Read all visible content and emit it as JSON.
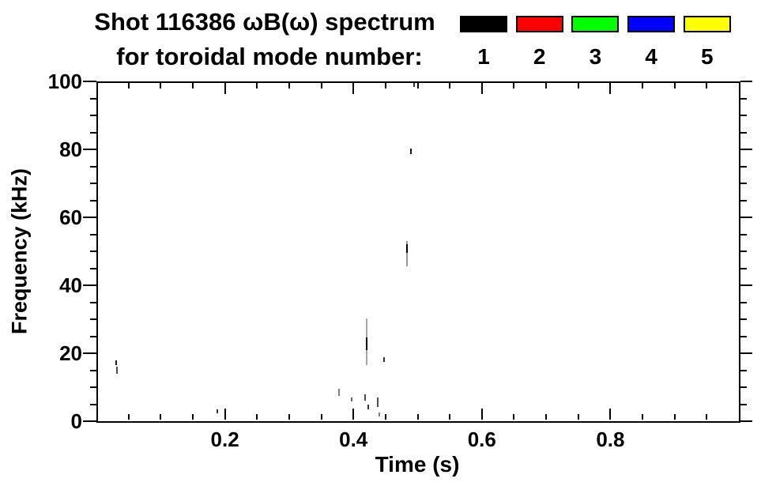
{
  "title": {
    "line1": "Shot 116386 ωB(ω) spectrum",
    "line2": "for toroidal mode number:"
  },
  "legend": {
    "items": [
      {
        "label": "1",
        "color": "#000000"
      },
      {
        "label": "2",
        "color": "#ff0000"
      },
      {
        "label": "3",
        "color": "#00ff00"
      },
      {
        "label": "4",
        "color": "#0000ff"
      },
      {
        "label": "5",
        "color": "#ffff00"
      }
    ]
  },
  "axes": {
    "xlabel": "Time (s)",
    "ylabel": "Frequency (kHz)"
  },
  "colors": {
    "foreground": "#000000",
    "background": "#ffffff"
  },
  "chart_data": {
    "type": "scatter",
    "title": "Shot 116386 ωB(ω) spectrum for toroidal mode number:",
    "xlabel": "Time (s)",
    "ylabel": "Frequency (kHz)",
    "xlim": [
      0.0,
      1.0
    ],
    "ylim": [
      0,
      100
    ],
    "x_major_ticks": [
      0.2,
      0.4,
      0.6,
      0.8
    ],
    "x_tick_labels": [
      "0.2",
      "0.4",
      "0.6",
      "0.8"
    ],
    "x_minor_tick_step": 0.05,
    "y_major_ticks": [
      0,
      20,
      40,
      60,
      80,
      100
    ],
    "y_tick_labels": [
      "0",
      "20",
      "40",
      "60",
      "80",
      "100"
    ],
    "y_minor_tick_step": 5,
    "grid": false,
    "legend_position": "top-right-above-plot",
    "legend_entries": [
      "1",
      "2",
      "3",
      "4",
      "5"
    ],
    "legend_colors": [
      "#000000",
      "#ff0000",
      "#00ff00",
      "#0000ff",
      "#ffff00"
    ],
    "series": [
      {
        "name": "toroidal mode n=1",
        "color": "#000000",
        "marks": [
          {
            "t": 0.031,
            "f_lo": 16.5,
            "f_hi": 18.0,
            "alpha": 0.9
          },
          {
            "t": 0.032,
            "f_lo": 14.0,
            "f_hi": 16.0,
            "alpha": 0.7
          },
          {
            "t": 0.188,
            "f_lo": 2.3,
            "f_hi": 3.5,
            "alpha": 0.8
          },
          {
            "t": 0.377,
            "f_lo": 7.5,
            "f_hi": 9.5,
            "alpha": 0.5
          },
          {
            "t": 0.397,
            "f_lo": 5.8,
            "f_hi": 7.0,
            "alpha": 0.6
          },
          {
            "t": 0.418,
            "f_lo": 6.0,
            "f_hi": 8.0,
            "alpha": 0.7
          },
          {
            "t": 0.421,
            "f_lo": 16.5,
            "f_hi": 30.2,
            "alpha": 0.35
          },
          {
            "t": 0.421,
            "f_lo": 20.9,
            "f_hi": 24.7,
            "alpha": 1.0
          },
          {
            "t": 0.423,
            "f_lo": 3.5,
            "f_hi": 4.9,
            "alpha": 0.8
          },
          {
            "t": 0.438,
            "f_lo": 4.2,
            "f_hi": 7.0,
            "alpha": 0.7
          },
          {
            "t": 0.44,
            "f_lo": 1.4,
            "f_hi": 2.6,
            "alpha": 0.5
          },
          {
            "t": 0.448,
            "f_lo": 17.4,
            "f_hi": 18.8,
            "alpha": 0.8
          },
          {
            "t": 0.483,
            "f_lo": 45.6,
            "f_hi": 53.0,
            "alpha": 0.4
          },
          {
            "t": 0.483,
            "f_lo": 49.5,
            "f_hi": 52.0,
            "alpha": 1.0
          },
          {
            "t": 0.49,
            "f_lo": 78.6,
            "f_hi": 80.2,
            "alpha": 0.9
          },
          {
            "t": 0.494,
            "f_lo": 98.4,
            "f_hi": 100.0,
            "alpha": 0.8
          }
        ]
      },
      {
        "name": "toroidal mode n=2",
        "color": "#ff0000",
        "marks": []
      },
      {
        "name": "toroidal mode n=3",
        "color": "#00ff00",
        "marks": []
      },
      {
        "name": "toroidal mode n=4",
        "color": "#0000ff",
        "marks": []
      },
      {
        "name": "toroidal mode n=5",
        "color": "#ffff00",
        "marks": []
      }
    ]
  }
}
